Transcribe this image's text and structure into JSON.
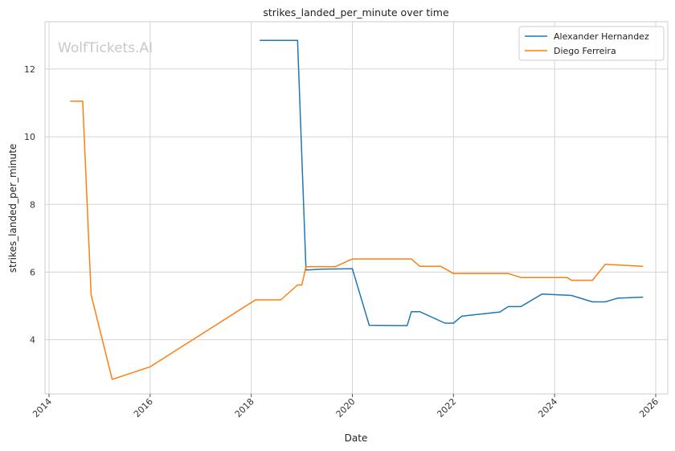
{
  "chart_data": {
    "type": "line",
    "title": "strikes_landed_per_minute over time",
    "xlabel": "Date",
    "ylabel": "strikes_landed_per_minute",
    "watermark": "WolfTickets.AI",
    "x_axis_type": "date",
    "xlim": [
      "2014-01-01",
      "2026-01-01"
    ],
    "ylim": [
      2.4,
      13.4
    ],
    "x_ticks": [
      "2014",
      "2016",
      "2018",
      "2020",
      "2022",
      "2024",
      "2026"
    ],
    "y_ticks": [
      4,
      6,
      8,
      10,
      12
    ],
    "grid": true,
    "legend_position": "top-right",
    "series": [
      {
        "name": "Alexander Hernandez",
        "color": "#1f77b4",
        "points": [
          [
            "2018-03-01",
            12.85
          ],
          [
            "2018-12-01",
            12.85
          ],
          [
            "2019-02-01",
            6.06
          ],
          [
            "2019-06-01",
            6.09
          ],
          [
            "2020-01-01",
            6.1
          ],
          [
            "2020-05-01",
            4.43
          ],
          [
            "2020-12-01",
            4.42
          ],
          [
            "2021-02-01",
            4.42
          ],
          [
            "2021-03-01",
            4.83
          ],
          [
            "2021-05-01",
            4.83
          ],
          [
            "2021-11-01",
            4.49
          ],
          [
            "2022-01-01",
            4.49
          ],
          [
            "2022-03-01",
            4.7
          ],
          [
            "2022-12-01",
            4.82
          ],
          [
            "2023-02-01",
            4.98
          ],
          [
            "2023-05-01",
            4.98
          ],
          [
            "2023-10-01",
            5.35
          ],
          [
            "2024-05-01",
            5.31
          ],
          [
            "2024-10-01",
            5.12
          ],
          [
            "2025-01-01",
            5.12
          ],
          [
            "2025-04-01",
            5.23
          ],
          [
            "2025-10-01",
            5.26
          ]
        ]
      },
      {
        "name": "Diego Ferreira",
        "color": "#ff7f0e",
        "points": [
          [
            "2014-06-01",
            11.05
          ],
          [
            "2014-09-01",
            11.05
          ],
          [
            "2014-11-01",
            5.33
          ],
          [
            "2015-04-01",
            2.83
          ],
          [
            "2016-01-01",
            3.2
          ],
          [
            "2018-02-01",
            5.18
          ],
          [
            "2018-08-01",
            5.18
          ],
          [
            "2018-12-01",
            5.62
          ],
          [
            "2019-01-01",
            5.62
          ],
          [
            "2019-02-01",
            6.16
          ],
          [
            "2019-09-01",
            6.16
          ],
          [
            "2020-01-01",
            6.39
          ],
          [
            "2021-03-01",
            6.39
          ],
          [
            "2021-05-01",
            6.17
          ],
          [
            "2021-10-01",
            6.17
          ],
          [
            "2022-01-01",
            5.96
          ],
          [
            "2023-02-01",
            5.96
          ],
          [
            "2023-05-01",
            5.84
          ],
          [
            "2024-04-01",
            5.84
          ],
          [
            "2024-05-01",
            5.76
          ],
          [
            "2024-10-01",
            5.76
          ],
          [
            "2025-01-01",
            6.23
          ],
          [
            "2025-10-01",
            6.17
          ]
        ]
      }
    ]
  }
}
